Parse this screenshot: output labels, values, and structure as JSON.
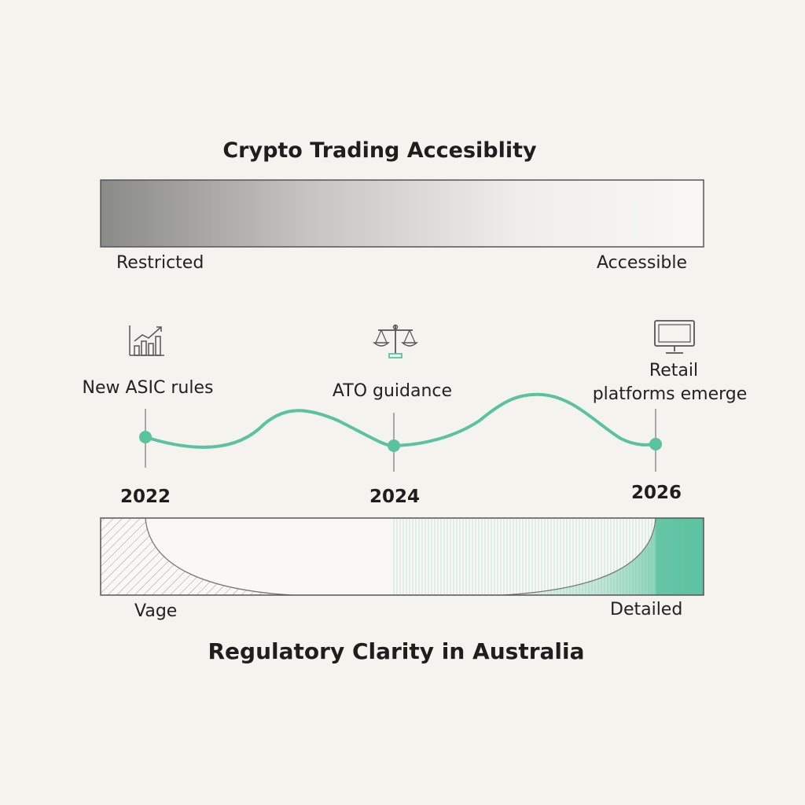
{
  "accessibility_scale": {
    "title": "Crypto Trading Accesiblity",
    "left_label": "Restricted",
    "right_label": "Accessible"
  },
  "timeline": {
    "events": [
      {
        "year": "2022",
        "label": "New ASIC rules",
        "icon": "bar-chart-trend-icon"
      },
      {
        "year": "2024",
        "label": "ATO guidance",
        "icon": "scales-of-justice-icon"
      },
      {
        "year": "2026",
        "label_line1": "Retail",
        "label_line2": "platforms emerge",
        "icon": "computer-monitor-icon"
      }
    ],
    "line_color": "#5bc2a0"
  },
  "clarity_scale": {
    "title": "Regulatory Clarity in Australia",
    "left_label": "Vage",
    "right_label": "Detailed",
    "accent_color": "#5bc2a0"
  }
}
